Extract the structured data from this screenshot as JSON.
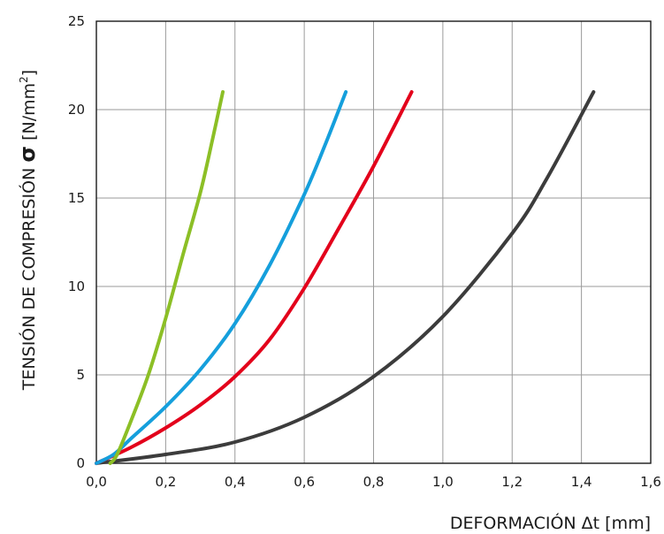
{
  "chart_data": {
    "type": "line",
    "xlabel": "DEFORMACIÓN Δt [mm]",
    "ylabel": {
      "prefix": "TENSIÓN DE COMPRESIÓN ",
      "symbol": "σ",
      "unit_base": " [N/mm",
      "unit_sup": "2",
      "unit_end": "]"
    },
    "xlim": [
      0,
      1.6
    ],
    "ylim": [
      0,
      25
    ],
    "x_ticks": [
      0,
      0.2,
      0.4,
      0.6,
      0.8,
      1.0,
      1.2,
      1.4,
      1.6
    ],
    "x_tick_labels": [
      "0,0",
      "0,2",
      "0,4",
      "0,6",
      "0,8",
      "1,0",
      "1,2",
      "1,4",
      "1,6"
    ],
    "y_ticks": [
      0,
      5,
      10,
      15,
      20,
      25
    ],
    "y_tick_labels": [
      "0",
      "5",
      "10",
      "15",
      "20",
      "25"
    ],
    "grid": true,
    "series": [
      {
        "color": "#8cbf26",
        "points": [
          [
            0.04,
            0
          ],
          [
            0.06,
            0.5
          ],
          [
            0.1,
            2.4
          ],
          [
            0.15,
            5
          ],
          [
            0.2,
            8.2
          ],
          [
            0.25,
            11.8
          ],
          [
            0.3,
            15.3
          ],
          [
            0.335,
            18.3
          ],
          [
            0.365,
            21
          ]
        ]
      },
      {
        "color": "#159fdc",
        "points": [
          [
            0.0,
            0
          ],
          [
            0.05,
            0.5
          ],
          [
            0.1,
            1.4
          ],
          [
            0.2,
            3.2
          ],
          [
            0.3,
            5.3
          ],
          [
            0.4,
            7.9
          ],
          [
            0.5,
            11.2
          ],
          [
            0.6,
            15.2
          ],
          [
            0.66,
            18
          ],
          [
            0.72,
            21
          ]
        ]
      },
      {
        "color": "#e3001b",
        "points": [
          [
            0.0,
            0
          ],
          [
            0.1,
            0.9
          ],
          [
            0.2,
            2.0
          ],
          [
            0.3,
            3.3
          ],
          [
            0.4,
            4.9
          ],
          [
            0.5,
            7.0
          ],
          [
            0.6,
            9.9
          ],
          [
            0.7,
            13.3
          ],
          [
            0.8,
            16.8
          ],
          [
            0.91,
            21
          ]
        ]
      },
      {
        "color": "#3c3c3c",
        "points": [
          [
            0.0,
            0
          ],
          [
            0.2,
            0.5
          ],
          [
            0.4,
            1.2
          ],
          [
            0.6,
            2.6
          ],
          [
            0.8,
            4.9
          ],
          [
            1.0,
            8.3
          ],
          [
            1.2,
            13.0
          ],
          [
            1.3,
            16.1
          ],
          [
            1.435,
            21
          ]
        ]
      }
    ]
  }
}
